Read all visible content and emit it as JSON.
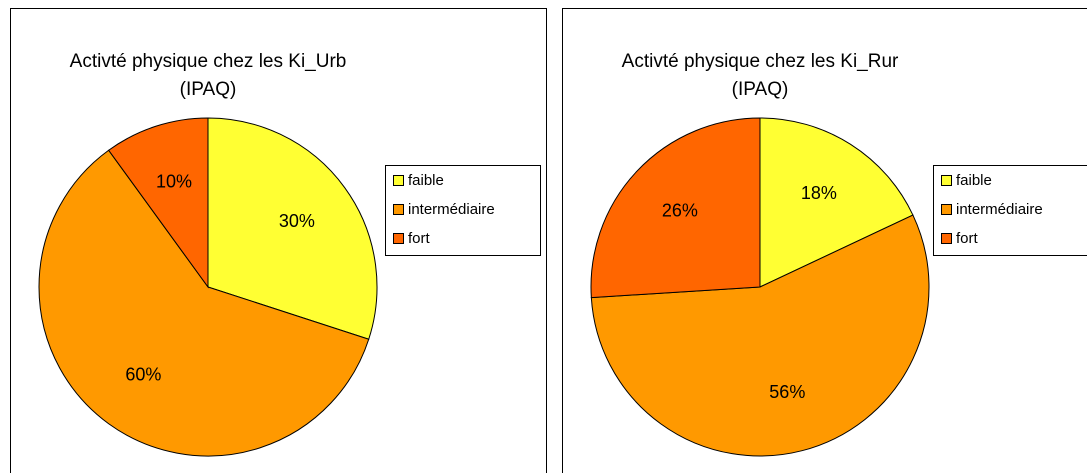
{
  "chart_data": [
    {
      "type": "pie",
      "title": "Activté physique chez les Ki_Urb",
      "subtitle": "(IPAQ)",
      "categories": [
        "faible",
        "intermédiaire",
        "fort"
      ],
      "values": [
        30,
        60,
        10
      ],
      "value_labels": [
        "30%",
        "60%",
        "10%"
      ],
      "colors": [
        "#ffff33",
        "#ff9900",
        "#ff6600"
      ],
      "legend": "right"
    },
    {
      "type": "pie",
      "title": "Activté physique chez les Ki_Rur",
      "subtitle": "(IPAQ)",
      "categories": [
        "faible",
        "intermédiaire",
        "fort"
      ],
      "values": [
        18,
        56,
        26
      ],
      "value_labels": [
        "18%",
        "56%",
        "26%"
      ],
      "colors": [
        "#ffff33",
        "#ff9900",
        "#ff6600"
      ],
      "legend": "right"
    }
  ]
}
